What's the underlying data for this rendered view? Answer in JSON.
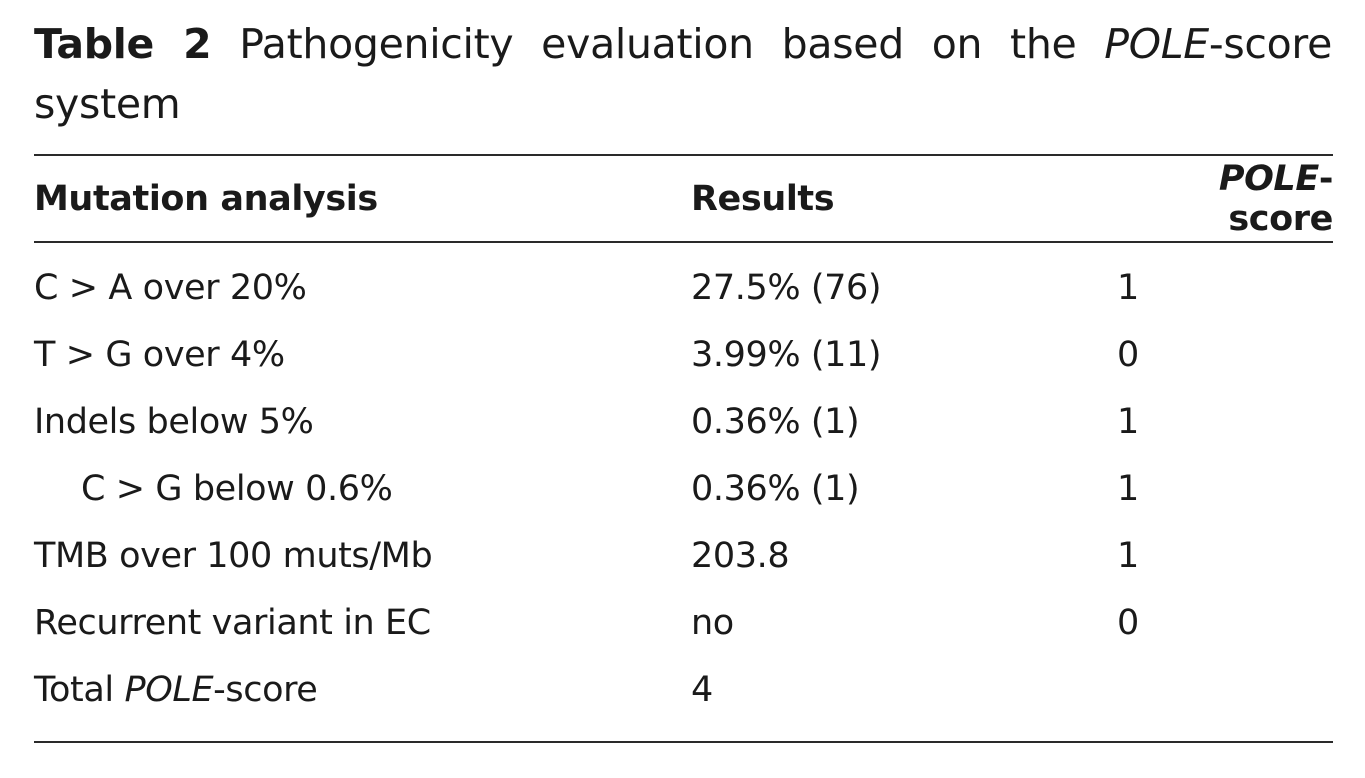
{
  "caption": {
    "label": "Table 2",
    "text_before_italic": "Pathogenicity evaluation based on the",
    "italic": "POLE",
    "text_after_italic": "-score system"
  },
  "table": {
    "headers": {
      "mutation_analysis": "Mutation analysis",
      "results": "Results",
      "score_italic": "POLE",
      "score_rest": "-score"
    },
    "rows": [
      {
        "analysis": "C > A over 20%",
        "result": "27.5% (76)",
        "score": "1"
      },
      {
        "analysis": "T > G over 4%",
        "result": "3.99% (11)",
        "score": "0"
      },
      {
        "analysis": "Indels below 5%",
        "result": "0.36% (1)",
        "score": "1"
      },
      {
        "analysis": "C > G below 0.6%",
        "result": "0.36% (1)",
        "score": "1"
      },
      {
        "analysis": "TMB over 100 muts/Mb",
        "result": "203.8",
        "score": "1"
      },
      {
        "analysis": "Recurrent variant in EC",
        "result": "no",
        "score": "0"
      }
    ],
    "total": {
      "label_before": "Total",
      "label_italic": "POLE",
      "label_after": "-score",
      "result": "4",
      "score": ""
    }
  }
}
